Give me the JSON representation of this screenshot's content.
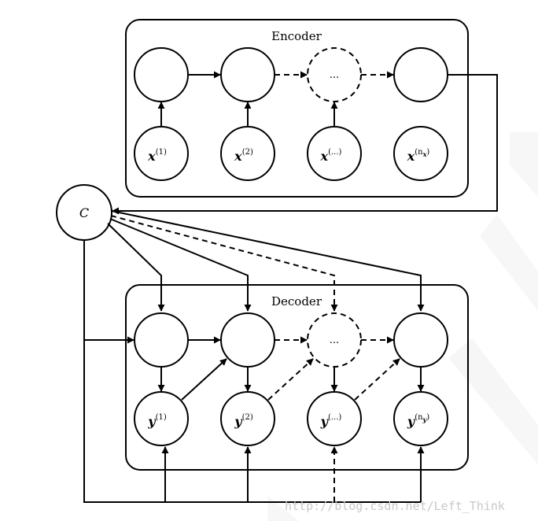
{
  "encoder": {
    "title": "Encoder",
    "dots": "...",
    "inputs": [
      {
        "base": "x",
        "sup": "(1)"
      },
      {
        "base": "x",
        "sup": "(2)"
      },
      {
        "base": "x",
        "sup": "(...)"
      },
      {
        "base": "x",
        "sup": "(n",
        "sub": "x",
        "close": ")"
      }
    ]
  },
  "context": {
    "label": "C"
  },
  "decoder": {
    "title": "Decoder",
    "dots": "...",
    "outputs": [
      {
        "base": "y",
        "sup": "(1)"
      },
      {
        "base": "y",
        "sup": "(2)"
      },
      {
        "base": "y",
        "sup": "(...)"
      },
      {
        "base": "y",
        "sup": "(n",
        "sub": "y",
        "close": ")"
      }
    ]
  },
  "watermark": {
    "text": "http://blog.csdn.net/Left_Think"
  }
}
